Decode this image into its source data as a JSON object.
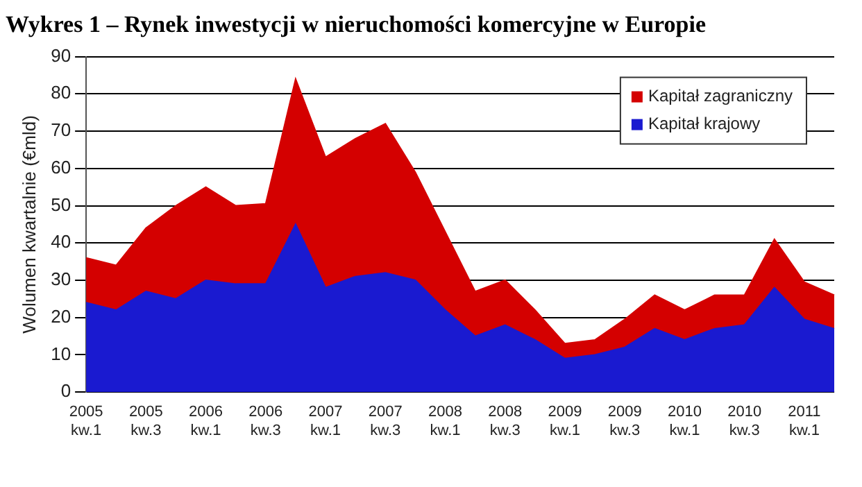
{
  "chart_data": {
    "type": "area",
    "title": "Wykres 1 – Rynek inwestycji w nieruchomości komercyjne w Europie",
    "ylabel": "Wolumen kwartalnie (€mld)",
    "categories": [
      "2005 kw.1",
      null,
      "2005 kw.3",
      null,
      "2006 kw.1",
      null,
      "2006 kw.3",
      null,
      "2007 kw.1",
      null,
      "2007 kw.3",
      null,
      "2008 kw.1",
      null,
      "2008 kw.3",
      null,
      "2009 kw.1",
      null,
      "2009 kw.3",
      null,
      "2010 kw.1",
      null,
      "2010 kw.3",
      null,
      "2011 kw.1",
      null
    ],
    "series": [
      {
        "name": "Kapitał krajowy",
        "color": "#1a1ad0",
        "values": [
          24,
          22,
          27,
          25,
          30,
          29,
          29,
          45,
          28,
          31,
          32,
          30,
          22,
          15,
          18,
          14,
          9,
          10,
          12,
          17,
          14,
          17,
          18,
          28,
          19.5,
          17
        ]
      },
      {
        "name": "Kapitał zagraniczny",
        "color": "#d40000",
        "values": [
          12,
          12,
          17,
          25,
          25,
          21,
          21.5,
          39,
          35,
          37,
          40,
          29,
          21,
          12,
          12,
          8,
          4,
          4,
          7.5,
          9,
          8,
          9,
          8,
          13,
          10,
          9
        ]
      }
    ],
    "stacked": true,
    "ylim": [
      0,
      90
    ],
    "yticks": [
      0,
      10,
      20,
      30,
      40,
      50,
      60,
      70,
      80,
      90
    ],
    "grid": "y",
    "legend": "top right"
  }
}
